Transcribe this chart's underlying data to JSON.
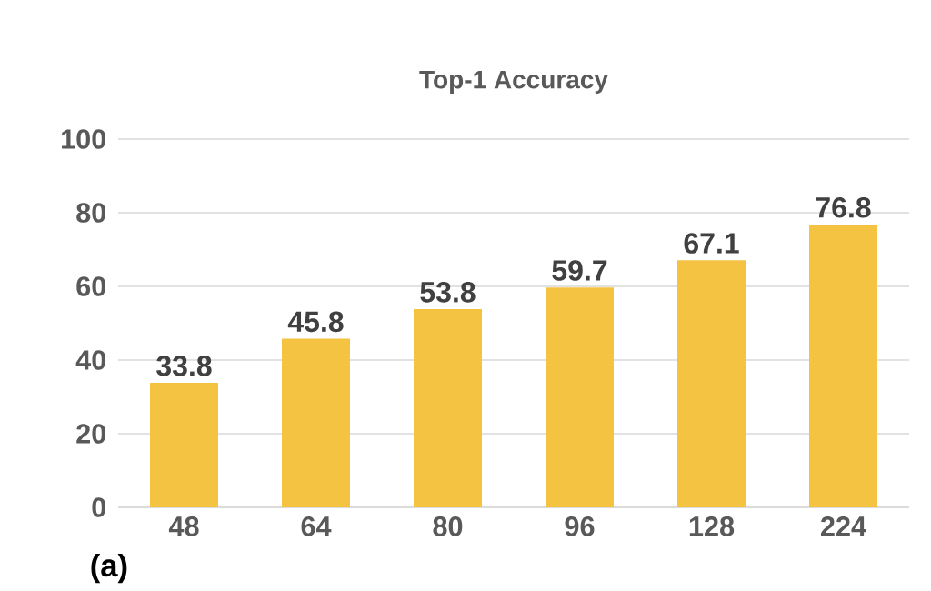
{
  "chart_data": {
    "type": "bar",
    "title": "Top-1 Accuracy",
    "categories": [
      "48",
      "64",
      "80",
      "96",
      "128",
      "224"
    ],
    "values": [
      33.8,
      45.8,
      53.8,
      59.7,
      67.1,
      76.8
    ],
    "color": "#f5c342",
    "ylim": [
      0,
      100
    ],
    "yticks": [
      0,
      20,
      40,
      60,
      80,
      100
    ],
    "grid": "y",
    "data_labels": true,
    "annotations": [
      "(a)"
    ]
  }
}
